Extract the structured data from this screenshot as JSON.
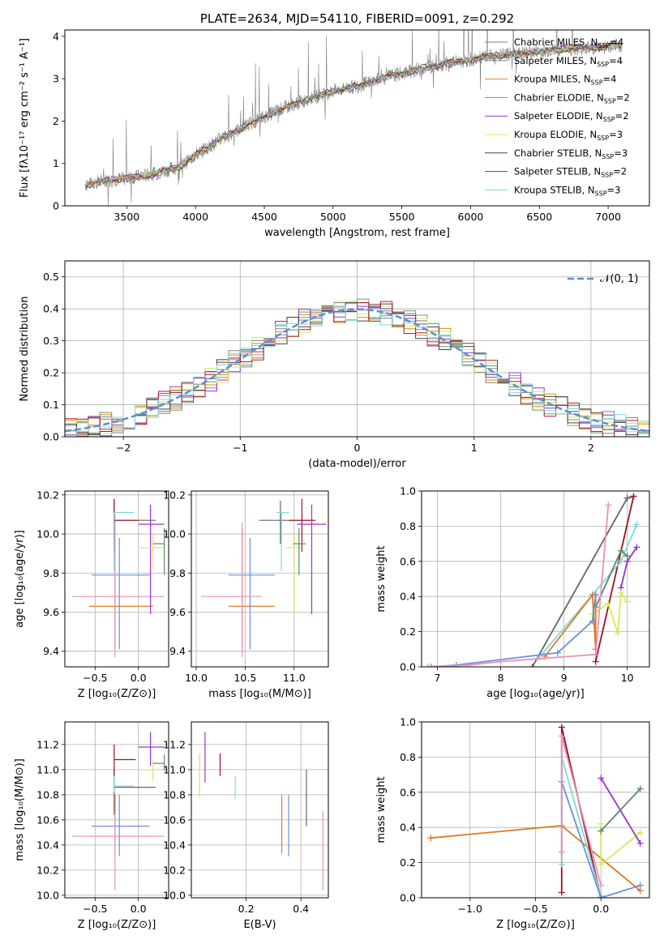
{
  "colors": {
    "Chabrier MILES": "#7f7f7f",
    "Salpeter MILES": "#888888",
    "Kroupa MILES": "#e08a10",
    "Chabrier ELODIE": "#6a9a70",
    "Salpeter ELODIE": "#9932cc",
    "Kroupa ELODIE": "#d6e85a",
    "Chabrier STELIB": "#444444",
    "Salpeter STELIB": "#b22222",
    "Kroupa STELIB": "#7fd8d8",
    "normal": "#5b8fd6",
    "orange": "#e07a20",
    "blue": "#6a90d8",
    "pink": "#e890c0",
    "grey": "#666666",
    "dkred": "#a01020",
    "purple": "#9932cc",
    "lime": "#d6e85a",
    "green": "#5a8a6a",
    "cyan": "#7fd8d8"
  },
  "chart_data": [
    {
      "id": "spectrum",
      "type": "line",
      "title": "PLATE=2634, MJD=54110, FIBERID=0091, z=0.292",
      "xlabel": "wavelength [Angstrom, rest frame]",
      "ylabel": "Flux [fλ10⁻¹⁷ erg cm⁻² s⁻¹ A⁻¹]",
      "xlim": [
        3050,
        7300
      ],
      "ylim": [
        0,
        4.15
      ],
      "xticks": [
        "3500",
        "4000",
        "4500",
        "5000",
        "5500",
        "6000",
        "6500",
        "7000"
      ],
      "yticks": [
        "0",
        "1",
        "2",
        "3",
        "4"
      ],
      "legend": [
        {
          "name": "Chabrier MILES",
          "sub": "=4"
        },
        {
          "name": "Salpeter MILES",
          "sub": "=4"
        },
        {
          "name": "Kroupa MILES",
          "sub": "=4"
        },
        {
          "name": "Chabrier ELODIE",
          "sub": "=2"
        },
        {
          "name": "Salpeter ELODIE",
          "sub": "=2"
        },
        {
          "name": "Kroupa ELODIE",
          "sub": "=3"
        },
        {
          "name": "Chabrier STELIB",
          "sub": "=3"
        },
        {
          "name": "Salpeter STELIB",
          "sub": "=2"
        },
        {
          "name": "Kroupa STELIB",
          "sub": "=3"
        }
      ],
      "legend_location": "upper right",
      "continuum": [
        [
          3200,
          0.5
        ],
        [
          3350,
          0.6
        ],
        [
          3500,
          0.65
        ],
        [
          3700,
          0.75
        ],
        [
          3900,
          0.95
        ],
        [
          4000,
          1.2
        ],
        [
          4200,
          1.6
        ],
        [
          4400,
          1.95
        ],
        [
          4600,
          2.25
        ],
        [
          4800,
          2.5
        ],
        [
          5000,
          2.7
        ],
        [
          5200,
          2.85
        ],
        [
          5400,
          3.05
        ],
        [
          5600,
          3.2
        ],
        [
          5800,
          3.35
        ],
        [
          6000,
          3.45
        ],
        [
          6200,
          3.55
        ],
        [
          6400,
          3.6
        ],
        [
          6600,
          3.68
        ],
        [
          6800,
          3.72
        ],
        [
          7000,
          3.75
        ],
        [
          7100,
          3.8
        ]
      ]
    },
    {
      "id": "residuals",
      "type": "line",
      "xlabel": "(data-model)/error",
      "ylabel": "Normed distribution",
      "xlim": [
        -2.5,
        2.5
      ],
      "ylim": [
        0,
        0.55
      ],
      "xticks": [
        "−2",
        "−1",
        "0",
        "1",
        "2"
      ],
      "yticks": [
        "0.0",
        "0.1",
        "0.2",
        "0.3",
        "0.4",
        "0.5"
      ],
      "legend": "𝒩(0, 1)",
      "legend_location": "upper right"
    },
    {
      "id": "age_vs_Z",
      "type": "scatter",
      "xlabel": "Z [log₁₀(Z/Z⊙)]",
      "ylabel": "age  [log₁₀(age/yr)]",
      "xlim": [
        -0.85,
        0.35
      ],
      "ylim": [
        9.32,
        10.22
      ],
      "xticks": [
        "−0.5",
        "0.0"
      ],
      "yticks": [
        "9.4",
        "9.6",
        "9.8",
        "10.0",
        "10.2"
      ],
      "errorbars": [
        {
          "c": "orange",
          "x": -0.27,
          "y": 9.63,
          "xl": -0.57,
          "xh": 0.17,
          "yl": 9.42,
          "yh": 10.03
        },
        {
          "c": "blue",
          "x": -0.22,
          "y": 9.79,
          "xl": -0.54,
          "xh": 0.13,
          "yl": 9.41,
          "yh": 9.98
        },
        {
          "c": "pink",
          "x": -0.27,
          "y": 9.68,
          "xl": -0.77,
          "xh": 0.3,
          "yl": 9.37,
          "yh": 10.1
        },
        {
          "c": "grey",
          "x": -0.28,
          "y": 10.07,
          "xl": -0.28,
          "xh": 0.2,
          "yl": 9.95,
          "yh": 10.17
        },
        {
          "c": "dkred",
          "x": -0.28,
          "y": 10.07,
          "xl": -0.28,
          "xh": 0.0,
          "yl": 9.91,
          "yh": 10.18
        },
        {
          "c": "purple",
          "x": 0.14,
          "y": 10.05,
          "xl": 0.0,
          "xh": 0.3,
          "yl": 9.59,
          "yh": 10.15
        },
        {
          "c": "lime",
          "x": 0.17,
          "y": 9.93,
          "xl": 0.0,
          "xh": 0.3,
          "yl": 9.82,
          "yh": 10.0
        },
        {
          "c": "green",
          "x": 0.3,
          "y": 9.95,
          "xl": 0.17,
          "xh": 0.3,
          "yl": 9.79,
          "yh": 10.03
        },
        {
          "c": "cyan",
          "x": -0.28,
          "y": 10.11,
          "xl": -0.28,
          "xh": -0.05,
          "yl": 9.81,
          "yh": 10.11
        }
      ]
    },
    {
      "id": "age_vs_mass",
      "type": "scatter",
      "xlabel": "mass [log₁₀(M/M⊙)]",
      "ylabel": "",
      "xlim": [
        9.95,
        11.35
      ],
      "ylim": [
        9.32,
        10.22
      ],
      "xticks": [
        "10.0",
        "10.5",
        "11.0"
      ],
      "yticks": [
        "9.4",
        "9.6",
        "9.8",
        "10.0",
        "10.2"
      ],
      "errorbars": [
        {
          "c": "orange",
          "x": 10.47,
          "y": 9.63,
          "xl": 10.33,
          "xh": 10.8,
          "yl": 9.42,
          "yh": 10.03
        },
        {
          "c": "blue",
          "x": 10.55,
          "y": 9.79,
          "xl": 10.33,
          "xh": 10.8,
          "yl": 9.41,
          "yh": 9.98
        },
        {
          "c": "pink",
          "x": 10.47,
          "y": 9.68,
          "xl": 10.05,
          "xh": 10.67,
          "yl": 9.37,
          "yh": 10.06
        },
        {
          "c": "grey",
          "x": 10.86,
          "y": 10.07,
          "xl": 10.64,
          "xh": 11.2,
          "yl": 9.95,
          "yh": 10.17
        },
        {
          "c": "dkred",
          "x": 11.08,
          "y": 10.07,
          "xl": 10.95,
          "xh": 11.22,
          "yl": 9.91,
          "yh": 10.18
        },
        {
          "c": "purple",
          "x": 11.18,
          "y": 10.05,
          "xl": 11.03,
          "xh": 11.33,
          "yl": 9.59,
          "yh": 10.15
        },
        {
          "c": "lime",
          "x": 11.0,
          "y": 9.93,
          "xl": 10.91,
          "xh": 11.08,
          "yl": 9.6,
          "yh": 10.0
        },
        {
          "c": "green",
          "x": 11.05,
          "y": 9.95,
          "xl": 10.99,
          "xh": 11.12,
          "yl": 9.79,
          "yh": 10.03
        },
        {
          "c": "cyan",
          "x": 10.87,
          "y": 10.11,
          "xl": 10.82,
          "xh": 10.95,
          "yl": 9.81,
          "yh": 10.11
        }
      ]
    },
    {
      "id": "massweight_vs_age",
      "type": "line",
      "xlabel": "age  [log₁₀(age/yr)]",
      "ylabel": "mass weight",
      "xlim": [
        6.75,
        10.35
      ],
      "ylim": [
        0,
        1.0
      ],
      "xticks": [
        "7",
        "8",
        "9",
        "10"
      ],
      "yticks": [
        "0.0",
        "0.2",
        "0.4",
        "0.6",
        "0.8",
        "1.0"
      ],
      "series": [
        {
          "c": "grey",
          "pts": [
            [
              8.5,
              0.0
            ],
            [
              10.0,
              0.96
            ],
            [
              10.1,
              0.97
            ]
          ]
        },
        {
          "c": "dkred",
          "pts": [
            [
              9.5,
              0.03
            ],
            [
              10.1,
              0.97
            ]
          ]
        },
        {
          "c": "cyan",
          "pts": [
            [
              8.6,
              0.05
            ],
            [
              9.9,
              0.6
            ],
            [
              10.15,
              0.81
            ]
          ]
        },
        {
          "c": "purple",
          "pts": [
            [
              9.9,
              0.45
            ],
            [
              10.0,
              0.6
            ],
            [
              10.15,
              0.68
            ]
          ]
        },
        {
          "c": "green",
          "pts": [
            [
              9.5,
              0.34
            ],
            [
              9.9,
              0.66
            ],
            [
              10.0,
              0.63
            ]
          ]
        },
        {
          "c": "lime",
          "pts": [
            [
              9.45,
              0.3
            ],
            [
              9.7,
              0.36
            ],
            [
              9.85,
              0.19
            ],
            [
              9.9,
              0.42
            ],
            [
              10.0,
              0.37
            ]
          ]
        },
        {
          "c": "orange",
          "pts": [
            [
              8.7,
              0.06
            ],
            [
              9.45,
              0.41
            ],
            [
              9.5,
              0.1
            ],
            [
              9.5,
              0.41
            ]
          ]
        },
        {
          "c": "blue",
          "pts": [
            [
              6.9,
              0.0
            ],
            [
              7.3,
              0.01
            ],
            [
              8.9,
              0.08
            ],
            [
              9.45,
              0.26
            ],
            [
              9.5,
              0.41
            ]
          ]
        },
        {
          "c": "pink",
          "pts": [
            [
              6.85,
              0.0
            ],
            [
              7.5,
              0.01
            ],
            [
              8.0,
              0.03
            ],
            [
              9.5,
              0.07
            ],
            [
              9.7,
              0.92
            ]
          ]
        }
      ]
    },
    {
      "id": "mass_vs_Z",
      "type": "scatter",
      "xlabel": "Z [log₁₀(Z/Z⊙)]",
      "ylabel": "mass [log₁₀(M/M⊙)]",
      "xlim": [
        -0.85,
        0.35
      ],
      "ylim": [
        9.98,
        11.38
      ],
      "xticks": [
        "−0.5",
        "0.0"
      ],
      "yticks": [
        "10.0",
        "10.2",
        "10.4",
        "10.6",
        "10.8",
        "11.0",
        "11.2"
      ],
      "errorbars": [
        {
          "c": "orange",
          "x": -0.27,
          "y": 10.47,
          "xl": -0.57,
          "xh": 0.17,
          "yl": 10.33,
          "yh": 10.8
        },
        {
          "c": "blue",
          "x": -0.22,
          "y": 10.55,
          "xl": -0.54,
          "xh": 0.13,
          "yl": 10.31,
          "yh": 10.8
        },
        {
          "c": "pink",
          "x": -0.27,
          "y": 10.47,
          "xl": -0.77,
          "xh": 0.3,
          "yl": 10.04,
          "yh": 10.67
        },
        {
          "c": "grey",
          "x": -0.28,
          "y": 10.86,
          "xl": -0.28,
          "xh": 0.2,
          "yl": 10.64,
          "yh": 11.0
        },
        {
          "c": "dkred",
          "x": -0.28,
          "y": 11.08,
          "xl": -0.28,
          "xh": -0.03,
          "yl": 10.95,
          "yh": 11.2
        },
        {
          "c": "purple",
          "x": 0.14,
          "y": 11.18,
          "xl": 0.0,
          "xh": 0.3,
          "yl": 11.03,
          "yh": 11.3
        },
        {
          "c": "lime",
          "x": 0.17,
          "y": 11.0,
          "xl": 0.0,
          "xh": 0.3,
          "yl": 10.91,
          "yh": 11.08
        },
        {
          "c": "green",
          "x": 0.3,
          "y": 11.05,
          "xl": 0.17,
          "xh": 0.3,
          "yl": 10.99,
          "yh": 11.12
        },
        {
          "c": "cyan",
          "x": -0.28,
          "y": 10.87,
          "xl": -0.28,
          "xh": -0.05,
          "yl": 10.82,
          "yh": 10.95
        }
      ]
    },
    {
      "id": "mass_vs_ebv",
      "type": "scatter",
      "xlabel": "E(B-V)",
      "ylabel": "",
      "xlim": [
        0.0,
        0.5
      ],
      "ylim": [
        9.98,
        11.38
      ],
      "xticks": [
        "0.2",
        "0.4"
      ],
      "yticks": [
        "10.0",
        "10.2",
        "10.4",
        "10.6",
        "10.8",
        "11.0",
        "11.2"
      ],
      "errorbars": [
        {
          "c": "orange",
          "x": 0.33,
          "y": 10.47,
          "yl": 10.33,
          "yh": 10.8
        },
        {
          "c": "blue",
          "x": 0.355,
          "y": 10.55,
          "yl": 10.31,
          "yh": 10.8
        },
        {
          "c": "pink",
          "x": 0.48,
          "y": 10.47,
          "yl": 10.04,
          "yh": 10.67
        },
        {
          "c": "grey",
          "x": 0.42,
          "y": 10.86,
          "yl": 10.55,
          "yh": 11.0
        },
        {
          "c": "dkred",
          "x": 0.105,
          "y": 11.08,
          "yl": 10.95,
          "yh": 11.13
        },
        {
          "c": "purple",
          "x": 0.05,
          "y": 11.18,
          "yl": 10.9,
          "yh": 11.3
        },
        {
          "c": "lime",
          "x": 0.03,
          "y": 11.0,
          "yl": 10.78,
          "yh": 11.13
        },
        {
          "c": "cyan",
          "x": 0.16,
          "y": 10.87,
          "yl": 10.77,
          "yh": 10.95
        }
      ]
    },
    {
      "id": "massweight_vs_Z",
      "type": "line",
      "xlabel": "Z [log₁₀(Z/Z⊙)]",
      "ylabel": "mass weight",
      "xlim": [
        -1.37,
        0.37
      ],
      "ylim": [
        0,
        1.0
      ],
      "xticks": [
        "−1.0",
        "−0.5",
        "0.0"
      ],
      "yticks": [
        "0.0",
        "0.2",
        "0.4",
        "0.6",
        "0.8",
        "1.0"
      ],
      "series": [
        {
          "c": "orange",
          "pts": [
            [
              -1.3,
              0.34
            ],
            [
              -0.3,
              0.41
            ],
            [
              0.3,
              0.04
            ]
          ]
        },
        {
          "c": "grey",
          "pts": [
            [
              -0.3,
              0.97
            ],
            [
              0.0,
              0.0
            ]
          ]
        },
        {
          "c": "dkred",
          "pts": [
            [
              -0.3,
              0.03
            ],
            [
              -0.3,
              0.97
            ],
            [
              0.0,
              0.0
            ]
          ]
        },
        {
          "c": "cyan",
          "pts": [
            [
              -0.3,
              0.19
            ],
            [
              -0.3,
              0.8
            ],
            [
              0.0,
              0.01
            ]
          ]
        },
        {
          "c": "blue",
          "pts": [
            [
              -0.3,
              0.66
            ],
            [
              0.0,
              0.0
            ],
            [
              0.3,
              0.07
            ]
          ]
        },
        {
          "c": "lime",
          "pts": [
            [
              0.0,
              0.42
            ],
            [
              0.0,
              0.19
            ],
            [
              0.3,
              0.37
            ]
          ]
        },
        {
          "c": "purple",
          "pts": [
            [
              0.0,
              0.68
            ],
            [
              0.3,
              0.31
            ]
          ]
        },
        {
          "c": "green",
          "pts": [
            [
              0.0,
              0.38
            ],
            [
              0.3,
              0.62
            ]
          ]
        },
        {
          "c": "pink",
          "pts": [
            [
              -0.3,
              0.26
            ],
            [
              -0.3,
              0.92
            ],
            [
              0.0,
              0.07
            ]
          ]
        }
      ]
    }
  ]
}
